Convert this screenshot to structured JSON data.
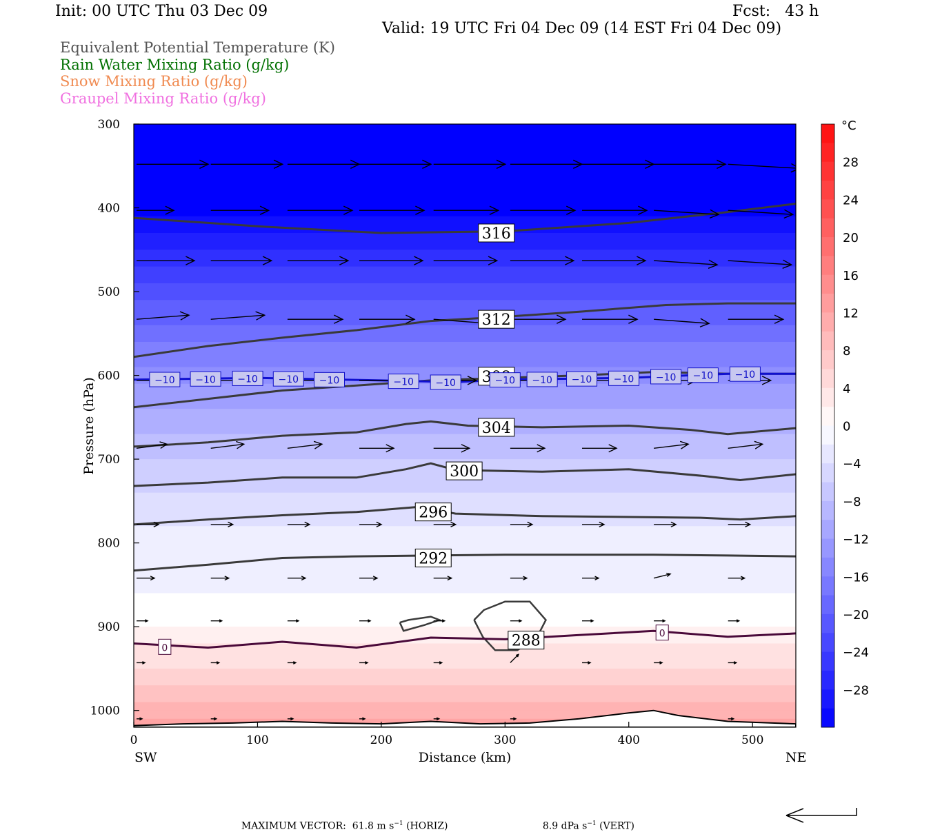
{
  "header": {
    "init": "Init: 00 UTC Thu 03 Dec 09",
    "fcst": "Fcst:   43 h",
    "valid": "Valid: 19 UTC Fri 04 Dec 09 (14 EST Fri 04 Dec 09)"
  },
  "legend": [
    {
      "label": "Equivalent Potential Temperature (K)",
      "color": "#555555"
    },
    {
      "label": "Rain Water Mixing Ratio (g/kg)",
      "color": "#007000"
    },
    {
      "label": "Snow Mixing Ratio (g/kg)",
      "color": "#f08a50"
    },
    {
      "label": "Graupel Mixing Ratio (g/kg)",
      "color": "#f070e0"
    }
  ],
  "chart_data": {
    "type": "cross-section",
    "xlabel": "Distance (km)",
    "ylabel": "Pressure (hPa)",
    "xlim": [
      0,
      535
    ],
    "ylim": [
      1020,
      300
    ],
    "x_ticks": [
      0,
      100,
      200,
      300,
      400,
      500
    ],
    "y_ticks": [
      300,
      400,
      500,
      600,
      700,
      800,
      900,
      1000
    ],
    "x_end_labels": {
      "left": "SW",
      "right": "NE"
    },
    "colorbar": {
      "unit": "°C",
      "tick_values": [
        28,
        24,
        20,
        16,
        12,
        8,
        4,
        0,
        -4,
        -8,
        -12,
        -16,
        -20,
        -24,
        -28
      ],
      "tick_labels": [
        "28",
        "24",
        "20",
        "16",
        "12",
        "8",
        "4",
        "0",
        "−4",
        "−8",
        "−12",
        "−16",
        "−20",
        "−24",
        "−28"
      ],
      "range": [
        -32,
        32
      ]
    },
    "temperature_field": {
      "levels_hPa": [
        300,
        400,
        500,
        600,
        700,
        800,
        850,
        900,
        925,
        950,
        1000,
        1020
      ],
      "temps_C": [
        -43,
        -32,
        -22,
        -14,
        -7,
        -2,
        -1.5,
        1,
        3,
        5,
        10,
        12
      ]
    },
    "theta_e_contours": [
      {
        "value": "316",
        "x": [
          0,
          100,
          200,
          300,
          400,
          480,
          535
        ],
        "p": [
          412,
          422,
          430,
          428,
          418,
          405,
          395
        ]
      },
      {
        "value": "312",
        "x": [
          0,
          60,
          120,
          180,
          240,
          300,
          360,
          430,
          480,
          535
        ],
        "p": [
          578,
          565,
          555,
          546,
          535,
          530,
          524,
          516,
          514,
          514
        ]
      },
      {
        "value": "308",
        "x": [
          0,
          60,
          120,
          180,
          240,
          300,
          360,
          420,
          480,
          535
        ],
        "p": [
          638,
          628,
          618,
          612,
          606,
          603,
          600,
          596,
          598,
          598
        ]
      },
      {
        "value": "304",
        "x": [
          0,
          60,
          120,
          180,
          220,
          240,
          270,
          330,
          400,
          450,
          480,
          535
        ],
        "p": [
          685,
          680,
          672,
          668,
          658,
          655,
          660,
          662,
          660,
          665,
          670,
          663
        ]
      },
      {
        "value": "300",
        "x": [
          0,
          60,
          120,
          180,
          220,
          240,
          260,
          330,
          400,
          460,
          490,
          535
        ],
        "p": [
          732,
          728,
          722,
          722,
          712,
          705,
          713,
          715,
          712,
          720,
          725,
          718
        ]
      },
      {
        "value": "296",
        "x": [
          0,
          60,
          120,
          180,
          230,
          260,
          330,
          400,
          460,
          490,
          535
        ],
        "p": [
          778,
          772,
          767,
          763,
          757,
          765,
          768,
          769,
          770,
          772,
          768
        ]
      },
      {
        "value": "292",
        "x": [
          0,
          60,
          120,
          180,
          240,
          300,
          360,
          420,
          480,
          535
        ],
        "p": [
          833,
          826,
          818,
          816,
          815,
          814,
          814,
          814,
          815,
          816
        ]
      }
    ],
    "theta_e_labels": [
      {
        "text": "316",
        "x": 293,
        "p": 430
      },
      {
        "text": "312",
        "x": 293,
        "p": 533
      },
      {
        "text": "308",
        "x": 293,
        "p": 601
      },
      {
        "text": "304",
        "x": 293,
        "p": 662
      },
      {
        "text": "300",
        "x": 267,
        "p": 714
      },
      {
        "text": "296",
        "x": 242,
        "p": 763
      },
      {
        "text": "292",
        "x": 242,
        "p": 818
      },
      {
        "text": "288",
        "x": 317,
        "p": 916
      }
    ],
    "isotherm_m10": {
      "value": "−10",
      "x": [
        0,
        100,
        200,
        260,
        300,
        400,
        480,
        535
      ],
      "p": [
        605,
        603,
        606,
        608,
        605,
        603,
        598,
        598
      ]
    },
    "isotherm_m10_labels_x": [
      25,
      58,
      92,
      125,
      158,
      218,
      252,
      300,
      330,
      362,
      396,
      430,
      460,
      494
    ],
    "isotherm_0": {
      "value": "0",
      "x": [
        0,
        60,
        120,
        180,
        240,
        300,
        360,
        420,
        480,
        535
      ],
      "p": [
        920,
        925,
        918,
        925,
        913,
        915,
        910,
        905,
        912,
        908
      ]
    },
    "isotherm_0_labels": [
      {
        "x": 25,
        "p": 924
      },
      {
        "x": 427,
        "p": 907
      }
    ],
    "small_contour_a": {
      "x": [
        215,
        222,
        240,
        247,
        235,
        218,
        215
      ],
      "p": [
        895,
        892,
        888,
        892,
        898,
        905,
        895
      ]
    },
    "small_contour_b": {
      "x": [
        275,
        283,
        300,
        320,
        333,
        326,
        310,
        292,
        282,
        275
      ],
      "p": [
        892,
        880,
        870,
        870,
        892,
        912,
        928,
        928,
        912,
        892
      ]
    },
    "wind_vectors": [
      {
        "p": 348,
        "x": [
          0,
          60,
          122,
          180,
          240,
          302,
          360,
          418,
          478,
          535
        ],
        "u": [
          52,
          52,
          52,
          52,
          52,
          52,
          52,
          52,
          52,
          52
        ],
        "w": [
          0,
          0,
          0,
          0,
          0,
          0,
          0,
          0,
          1,
          0
        ]
      },
      {
        "p": 403,
        "x": [
          0,
          60,
          122,
          180,
          240,
          302,
          360,
          418,
          478,
          535
        ],
        "u": [
          27,
          42,
          47,
          47,
          47,
          47,
          47,
          47,
          47,
          47
        ],
        "w": [
          0,
          0,
          0,
          0,
          0,
          0,
          0,
          1,
          1,
          1
        ]
      },
      {
        "p": 463,
        "x": [
          0,
          60,
          122,
          180,
          240,
          302,
          360,
          418,
          478,
          535
        ],
        "u": [
          42,
          44,
          44,
          46,
          46,
          46,
          46,
          46,
          46,
          46
        ],
        "w": [
          0,
          0,
          0,
          0,
          0,
          0,
          0,
          1,
          1,
          0
        ]
      },
      {
        "p": 533,
        "x": [
          0,
          60,
          122,
          180,
          240,
          302,
          360,
          418,
          478,
          535
        ],
        "u": [
          38,
          39,
          40,
          40,
          40,
          40,
          40,
          40,
          40,
          40
        ],
        "w": [
          -1,
          -1,
          0,
          0,
          1,
          0,
          0,
          1,
          0,
          0
        ]
      },
      {
        "p": 606,
        "x": [
          0,
          60,
          122,
          180,
          240,
          302,
          360,
          418,
          478,
          535
        ],
        "u": [
          28,
          31,
          31,
          31,
          31,
          31,
          31,
          31,
          31,
          31
        ],
        "w": [
          0,
          0,
          0,
          0,
          0,
          0,
          0,
          0,
          0,
          0
        ]
      },
      {
        "p": 687,
        "x": [
          0,
          60,
          122,
          180,
          240,
          302,
          360,
          418,
          478,
          535
        ],
        "u": [
          22,
          24,
          25,
          25,
          26,
          25,
          25,
          25,
          25,
          25
        ],
        "w": [
          -1,
          -1,
          -1,
          0,
          0,
          0,
          0,
          -1,
          -1,
          0
        ]
      },
      {
        "p": 778,
        "x": [
          0,
          60,
          122,
          180,
          240,
          302,
          360,
          418,
          478,
          535
        ],
        "u": [
          16,
          16,
          16,
          16,
          16,
          16,
          16,
          16,
          16,
          16
        ],
        "w": [
          0,
          0,
          0,
          0,
          0,
          0,
          0,
          0,
          0,
          0
        ]
      },
      {
        "p": 842,
        "x": [
          0,
          60,
          122,
          180,
          240,
          302,
          360,
          418,
          478,
          535
        ],
        "u": [
          13,
          13,
          13,
          13,
          13,
          12,
          12,
          12,
          12,
          12
        ],
        "w": [
          0,
          0,
          0,
          0,
          0,
          0,
          0,
          -1,
          0,
          0
        ]
      },
      {
        "p": 893,
        "x": [
          0,
          60,
          122,
          180,
          240,
          302,
          360,
          418,
          478,
          535
        ],
        "u": [
          8,
          8,
          8,
          8,
          8,
          8,
          8,
          8,
          8,
          8
        ],
        "w": [
          0,
          0,
          0,
          0,
          0,
          0,
          0,
          0,
          0,
          0
        ]
      },
      {
        "p": 943,
        "x": [
          0,
          60,
          122,
          180,
          240,
          302,
          360,
          418,
          478,
          535
        ],
        "u": [
          6,
          6,
          6,
          6,
          6,
          6,
          6,
          6,
          6,
          6
        ],
        "w": [
          0,
          0,
          0,
          0,
          0,
          -2,
          0,
          0,
          0,
          0
        ]
      },
      {
        "p": 1010,
        "x": [
          0,
          60,
          122,
          180,
          240,
          302,
          360,
          418,
          478,
          535
        ],
        "u": [
          4,
          4,
          4,
          4,
          4,
          4,
          4,
          4,
          4,
          4
        ],
        "w": [
          0,
          0,
          0,
          0,
          0,
          0,
          0,
          0,
          0,
          0
        ]
      }
    ],
    "terrain": {
      "x": [
        0,
        40,
        80,
        120,
        160,
        200,
        240,
        280,
        320,
        360,
        400,
        420,
        440,
        480,
        535
      ],
      "p": [
        1018,
        1016,
        1015,
        1013,
        1015,
        1016,
        1013,
        1016,
        1015,
        1010,
        1003,
        1000,
        1006,
        1013,
        1016
      ]
    }
  },
  "footer": {
    "max_vector_label": "MAXIMUM VECTOR:",
    "horiz_value": "61.8 m s",
    "horiz_unit": " (HORIZ)",
    "vert_value": "8.9 dPa s",
    "vert_unit": " (VERT)",
    "exponent": "−1"
  }
}
